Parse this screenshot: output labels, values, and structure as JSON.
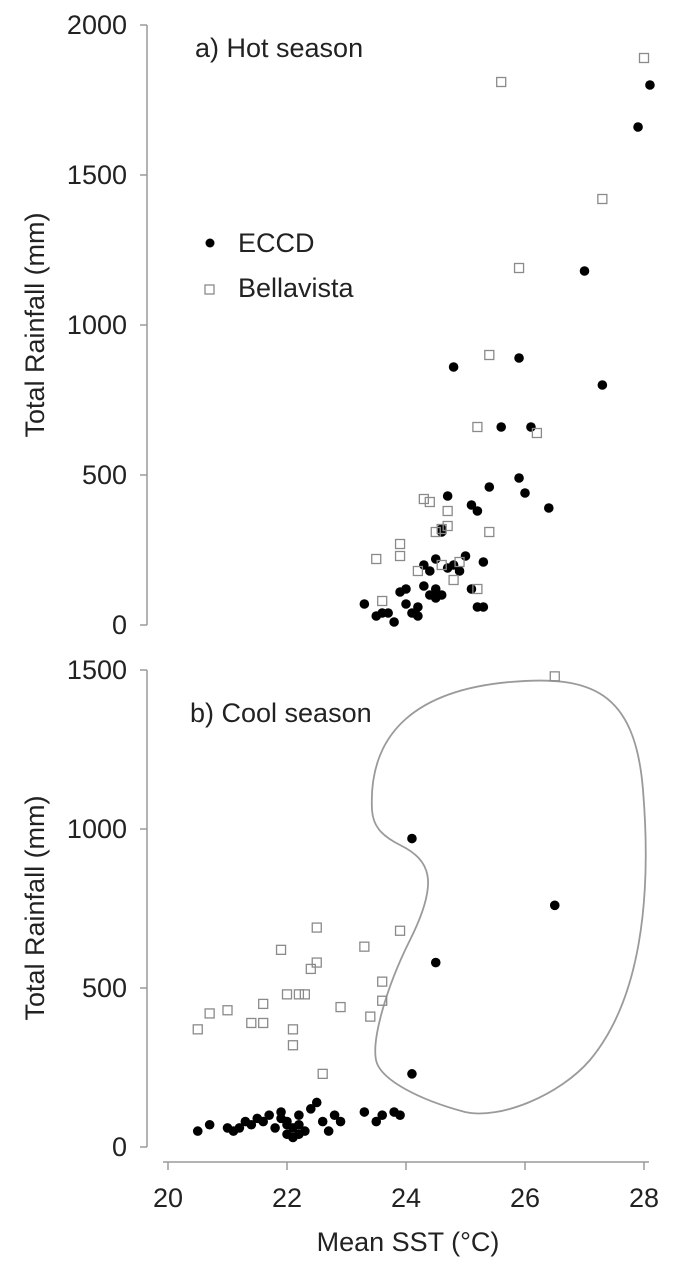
{
  "chart_data": [
    {
      "type": "scatter",
      "title": "a) Hot season",
      "xlabel": "",
      "ylabel": "Total Rainfall (mm)",
      "xlim": [
        20,
        28
      ],
      "ylim": [
        0,
        2000
      ],
      "yticks": [
        0,
        500,
        1000,
        1500,
        2000
      ],
      "legend": "upper-left",
      "series": [
        {
          "name": "ECCD",
          "marker": "filled-circle",
          "color": "#000000",
          "x": [
            23.3,
            23.5,
            23.6,
            23.8,
            23.9,
            24.0,
            24.1,
            24.2,
            24.3,
            24.3,
            24.4,
            24.5,
            24.5,
            24.6,
            24.6,
            24.7,
            24.7,
            24.8,
            24.9,
            25.0,
            25.1,
            25.2,
            25.2,
            25.3,
            25.4,
            24.8,
            25.6,
            25.9,
            26.0,
            26.1,
            26.4,
            27.0,
            27.3,
            27.9,
            28.1,
            24.5,
            24.6,
            24.2,
            24.0,
            25.1,
            24.4,
            25.3,
            25.9,
            23.7
          ],
          "y": [
            70,
            30,
            40,
            10,
            110,
            70,
            40,
            30,
            130,
            200,
            100,
            120,
            90,
            310,
            320,
            190,
            430,
            200,
            180,
            230,
            400,
            380,
            60,
            60,
            460,
            860,
            660,
            890,
            440,
            660,
            390,
            1180,
            800,
            1660,
            1800,
            220,
            100,
            60,
            120,
            120,
            180,
            210,
            490,
            40
          ]
        },
        {
          "name": "Bellavista",
          "marker": "open-square",
          "color": "#8a8a8a",
          "x": [
            23.6,
            23.5,
            23.9,
            23.9,
            24.2,
            24.3,
            24.4,
            24.5,
            24.6,
            24.7,
            24.7,
            24.8,
            25.2,
            25.2,
            25.4,
            25.4,
            25.6,
            25.9,
            26.2,
            27.3,
            28.0,
            24.6,
            24.9
          ],
          "y": [
            80,
            220,
            230,
            270,
            180,
            420,
            410,
            310,
            320,
            380,
            330,
            150,
            660,
            120,
            310,
            900,
            1810,
            1190,
            640,
            1420,
            1890,
            200,
            210
          ]
        }
      ]
    },
    {
      "type": "scatter",
      "title": "b) Cool season",
      "xlabel": "Mean SST (°C)",
      "ylabel": "Total Rainfall (mm)",
      "xlim": [
        20,
        28
      ],
      "ylim": [
        0,
        1500
      ],
      "xticks": [
        20,
        22,
        24,
        26,
        28
      ],
      "yticks": [
        0,
        500,
        1000,
        1500
      ],
      "annotation": "closed outline around high SST points (24–26.5 °C)",
      "series": [
        {
          "name": "ECCD",
          "marker": "filled-circle",
          "color": "#000000",
          "x": [
            20.5,
            20.7,
            21.0,
            21.1,
            21.2,
            21.4,
            21.5,
            21.6,
            21.7,
            21.8,
            21.9,
            22.0,
            22.0,
            22.1,
            22.1,
            22.2,
            22.2,
            22.3,
            22.4,
            22.5,
            22.6,
            22.7,
            22.8,
            22.9,
            23.3,
            23.5,
            23.6,
            23.8,
            23.9,
            24.1,
            24.1,
            24.5,
            26.5,
            21.3,
            21.9,
            22.2,
            22.0
          ],
          "y": [
            50,
            70,
            60,
            50,
            60,
            70,
            90,
            80,
            100,
            60,
            110,
            80,
            40,
            30,
            60,
            100,
            70,
            50,
            120,
            140,
            80,
            50,
            100,
            80,
            110,
            80,
            100,
            110,
            100,
            230,
            970,
            580,
            760,
            80,
            90,
            40,
            70
          ]
        },
        {
          "name": "Bellavista",
          "marker": "open-square",
          "color": "#8a8a8a",
          "x": [
            20.5,
            20.7,
            21.0,
            21.4,
            21.6,
            21.6,
            21.9,
            22.0,
            22.1,
            22.1,
            22.2,
            22.3,
            22.4,
            22.5,
            22.5,
            22.6,
            22.9,
            23.3,
            23.4,
            23.6,
            23.6,
            23.9,
            26.5
          ],
          "y": [
            370,
            420,
            430,
            390,
            390,
            450,
            620,
            480,
            370,
            320,
            480,
            480,
            560,
            580,
            690,
            230,
            440,
            630,
            410,
            460,
            520,
            680,
            1480
          ]
        }
      ]
    }
  ]
}
